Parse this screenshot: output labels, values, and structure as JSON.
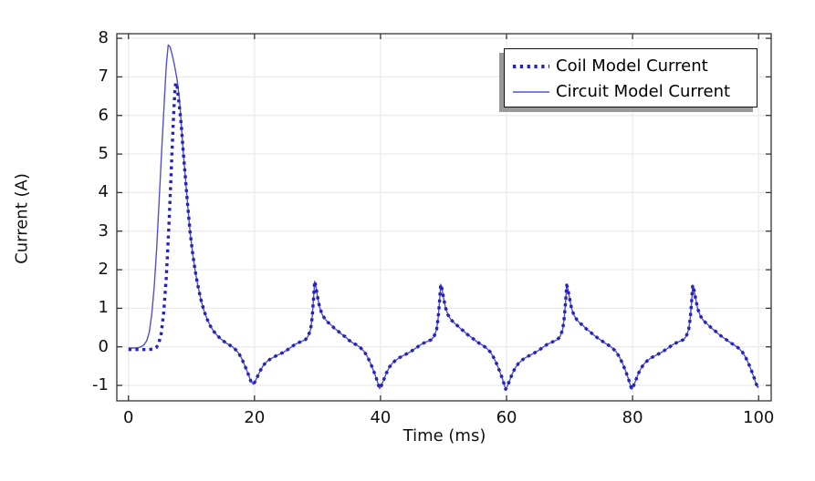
{
  "chart_data": {
    "type": "line",
    "title": "",
    "xlabel": "Time (ms)",
    "ylabel": "Current (A)",
    "x_ticks": [
      0,
      20,
      40,
      60,
      80,
      100
    ],
    "y_ticks": [
      -1,
      0,
      1,
      2,
      3,
      4,
      5,
      6,
      7,
      8
    ],
    "xlim": [
      -1.85,
      102
    ],
    "ylim": [
      -1.4,
      8.12
    ],
    "grid": true,
    "legend": {
      "position": "top-right"
    },
    "colors": {
      "grid": "#e9e9e9",
      "frame": "#333333",
      "text": "#111111",
      "background": "#ffffff",
      "legend_shadow": "#999999"
    },
    "note": "Both series coincide for t >= 8.4 ms: shared_tail_points continues each series' head_points.",
    "shared_tail_points": [
      [
        8.4,
        5.7
      ],
      [
        8.7,
        5.05
      ],
      [
        9,
        4.45
      ],
      [
        9.4,
        3.65
      ],
      [
        9.8,
        2.95
      ],
      [
        10.2,
        2.4
      ],
      [
        10.6,
        1.95
      ],
      [
        11,
        1.6
      ],
      [
        11.5,
        1.22
      ],
      [
        12,
        0.93
      ],
      [
        12.5,
        0.71
      ],
      [
        13,
        0.54
      ],
      [
        13.5,
        0.41
      ],
      [
        14,
        0.31
      ],
      [
        14.5,
        0.23
      ],
      [
        15,
        0.16
      ],
      [
        15.5,
        0.1
      ],
      [
        16,
        0.05
      ],
      [
        16.5,
        0
      ],
      [
        17,
        -0.07
      ],
      [
        17.5,
        -0.17
      ],
      [
        18,
        -0.31
      ],
      [
        18.5,
        -0.5
      ],
      [
        19,
        -0.71
      ],
      [
        19.4,
        -0.88
      ],
      [
        19.8,
        -0.97
      ],
      [
        20.1,
        -0.9
      ],
      [
        20.5,
        -0.76
      ],
      [
        20.9,
        -0.62
      ],
      [
        21.4,
        -0.48
      ],
      [
        21.9,
        -0.39
      ],
      [
        22.4,
        -0.33
      ],
      [
        23,
        -0.27
      ],
      [
        23.7,
        -0.21
      ],
      [
        24.5,
        -0.15
      ],
      [
        25.2,
        -0.08
      ],
      [
        25.8,
        -0.01
      ],
      [
        26.4,
        0.06
      ],
      [
        27,
        0.11
      ],
      [
        27.6,
        0.15
      ],
      [
        28.1,
        0.19
      ],
      [
        28.5,
        0.27
      ],
      [
        28.9,
        0.45
      ],
      [
        29.15,
        0.75
      ],
      [
        29.35,
        1.2
      ],
      [
        29.55,
        1.7
      ],
      [
        29.75,
        1.55
      ],
      [
        30,
        1.3
      ],
      [
        30.3,
        1.05
      ],
      [
        30.7,
        0.85
      ],
      [
        31.2,
        0.72
      ],
      [
        31.7,
        0.63
      ],
      [
        32.2,
        0.56
      ],
      [
        32.7,
        0.48
      ],
      [
        33.2,
        0.42
      ],
      [
        33.8,
        0.33
      ],
      [
        34.4,
        0.26
      ],
      [
        35,
        0.17
      ],
      [
        35.6,
        0.1
      ],
      [
        36.2,
        0.05
      ],
      [
        36.8,
        -0.02
      ],
      [
        37.4,
        -0.12
      ],
      [
        37.9,
        -0.25
      ],
      [
        38.4,
        -0.42
      ],
      [
        38.9,
        -0.62
      ],
      [
        39.3,
        -0.8
      ],
      [
        39.6,
        -0.95
      ],
      [
        39.85,
        -1.08
      ],
      [
        40.1,
        -1.02
      ],
      [
        40.5,
        -0.86
      ],
      [
        40.9,
        -0.69
      ],
      [
        41.4,
        -0.53
      ],
      [
        41.9,
        -0.42
      ],
      [
        42.4,
        -0.35
      ],
      [
        43,
        -0.28
      ],
      [
        43.7,
        -0.22
      ],
      [
        44.5,
        -0.15
      ],
      [
        45.2,
        -0.08
      ],
      [
        45.8,
        -0.01
      ],
      [
        46.4,
        0.06
      ],
      [
        47,
        0.11
      ],
      [
        47.6,
        0.15
      ],
      [
        48.1,
        0.19
      ],
      [
        48.5,
        0.27
      ],
      [
        48.9,
        0.45
      ],
      [
        49.15,
        0.75
      ],
      [
        49.35,
        1.15
      ],
      [
        49.55,
        1.62
      ],
      [
        49.75,
        1.5
      ],
      [
        50,
        1.27
      ],
      [
        50.3,
        1.02
      ],
      [
        50.7,
        0.83
      ],
      [
        51.2,
        0.7
      ],
      [
        51.7,
        0.62
      ],
      [
        52.2,
        0.55
      ],
      [
        52.7,
        0.47
      ],
      [
        53.2,
        0.41
      ],
      [
        53.8,
        0.32
      ],
      [
        54.4,
        0.25
      ],
      [
        55,
        0.17
      ],
      [
        55.6,
        0.1
      ],
      [
        56.2,
        0.04
      ],
      [
        56.8,
        -0.03
      ],
      [
        57.4,
        -0.13
      ],
      [
        57.9,
        -0.26
      ],
      [
        58.4,
        -0.43
      ],
      [
        58.9,
        -0.63
      ],
      [
        59.3,
        -0.81
      ],
      [
        59.6,
        -0.96
      ],
      [
        59.85,
        -1.1
      ],
      [
        60.1,
        -1.03
      ],
      [
        60.5,
        -0.87
      ],
      [
        60.9,
        -0.7
      ],
      [
        61.4,
        -0.54
      ],
      [
        61.9,
        -0.43
      ],
      [
        62.4,
        -0.35
      ],
      [
        63,
        -0.28
      ],
      [
        63.7,
        -0.22
      ],
      [
        64.5,
        -0.15
      ],
      [
        65.2,
        -0.08
      ],
      [
        65.8,
        -0.01
      ],
      [
        66.4,
        0.06
      ],
      [
        67,
        0.11
      ],
      [
        67.6,
        0.15
      ],
      [
        68.1,
        0.19
      ],
      [
        68.5,
        0.27
      ],
      [
        68.9,
        0.45
      ],
      [
        69.15,
        0.74
      ],
      [
        69.35,
        1.13
      ],
      [
        69.55,
        1.6
      ],
      [
        69.75,
        1.48
      ],
      [
        70,
        1.26
      ],
      [
        70.3,
        1.01
      ],
      [
        70.7,
        0.82
      ],
      [
        71.2,
        0.69
      ],
      [
        71.7,
        0.61
      ],
      [
        72.2,
        0.54
      ],
      [
        72.7,
        0.46
      ],
      [
        73.2,
        0.4
      ],
      [
        73.8,
        0.31
      ],
      [
        74.4,
        0.24
      ],
      [
        75,
        0.17
      ],
      [
        75.6,
        0.1
      ],
      [
        76.2,
        0.04
      ],
      [
        76.8,
        -0.03
      ],
      [
        77.4,
        -0.13
      ],
      [
        77.9,
        -0.26
      ],
      [
        78.4,
        -0.43
      ],
      [
        78.9,
        -0.63
      ],
      [
        79.3,
        -0.81
      ],
      [
        79.6,
        -0.96
      ],
      [
        79.85,
        -1.1
      ],
      [
        80.1,
        -1.03
      ],
      [
        80.5,
        -0.87
      ],
      [
        80.9,
        -0.7
      ],
      [
        81.4,
        -0.54
      ],
      [
        81.9,
        -0.43
      ],
      [
        82.4,
        -0.35
      ],
      [
        83,
        -0.28
      ],
      [
        83.7,
        -0.22
      ],
      [
        84.5,
        -0.15
      ],
      [
        85.2,
        -0.08
      ],
      [
        85.8,
        -0.01
      ],
      [
        86.4,
        0.06
      ],
      [
        87,
        0.11
      ],
      [
        87.6,
        0.15
      ],
      [
        88.1,
        0.19
      ],
      [
        88.5,
        0.27
      ],
      [
        88.9,
        0.45
      ],
      [
        89.15,
        0.74
      ],
      [
        89.35,
        1.13
      ],
      [
        89.55,
        1.6
      ],
      [
        89.75,
        1.48
      ],
      [
        90,
        1.26
      ],
      [
        90.3,
        1.01
      ],
      [
        90.7,
        0.82
      ],
      [
        91.2,
        0.69
      ],
      [
        91.7,
        0.61
      ],
      [
        92.2,
        0.54
      ],
      [
        92.7,
        0.46
      ],
      [
        93.2,
        0.4
      ],
      [
        93.8,
        0.31
      ],
      [
        94.4,
        0.24
      ],
      [
        95,
        0.17
      ],
      [
        95.6,
        0.1
      ],
      [
        96.2,
        0.04
      ],
      [
        96.8,
        -0.03
      ],
      [
        97.4,
        -0.13
      ],
      [
        97.9,
        -0.26
      ],
      [
        98.4,
        -0.43
      ],
      [
        98.9,
        -0.63
      ],
      [
        99.3,
        -0.81
      ],
      [
        99.6,
        -0.95
      ],
      [
        99.85,
        -1.05
      ],
      [
        100,
        -1.02
      ]
    ],
    "series": [
      {
        "name": "Coil Model Current",
        "style": "dotted",
        "color": "#2222c0",
        "line_width": 3.4,
        "head_points": [
          [
            0,
            -0.07
          ],
          [
            1,
            -0.07
          ],
          [
            2,
            -0.07
          ],
          [
            3,
            -0.07
          ],
          [
            3.9,
            -0.06
          ],
          [
            4.4,
            -0.02
          ],
          [
            4.8,
            0.08
          ],
          [
            5.2,
            0.35
          ],
          [
            5.6,
            0.9
          ],
          [
            6,
            1.8
          ],
          [
            6.4,
            3.1
          ],
          [
            6.8,
            4.6
          ],
          [
            7.1,
            5.8
          ],
          [
            7.35,
            6.6
          ],
          [
            7.5,
            6.85
          ],
          [
            7.7,
            6.78
          ],
          [
            7.9,
            6.5
          ],
          [
            8.1,
            6.2
          ]
        ]
      },
      {
        "name": "Circuit Model Current",
        "style": "solid",
        "color": "#5050ce",
        "line_width": 1.4,
        "head_points": [
          [
            0,
            -0.03
          ],
          [
            1,
            -0.03
          ],
          [
            1.6,
            -0.02
          ],
          [
            2.1,
            0.01
          ],
          [
            2.5,
            0.06
          ],
          [
            2.9,
            0.16
          ],
          [
            3.3,
            0.38
          ],
          [
            3.7,
            0.85
          ],
          [
            4.1,
            1.6
          ],
          [
            4.5,
            2.6
          ],
          [
            4.9,
            3.9
          ],
          [
            5.3,
            5.2
          ],
          [
            5.7,
            6.4
          ],
          [
            6,
            7.3
          ],
          [
            6.3,
            7.83
          ],
          [
            6.6,
            7.78
          ],
          [
            6.9,
            7.6
          ],
          [
            7.3,
            7.3
          ],
          [
            7.7,
            6.95
          ],
          [
            8,
            6.55
          ],
          [
            8.2,
            6.2
          ]
        ]
      }
    ]
  }
}
